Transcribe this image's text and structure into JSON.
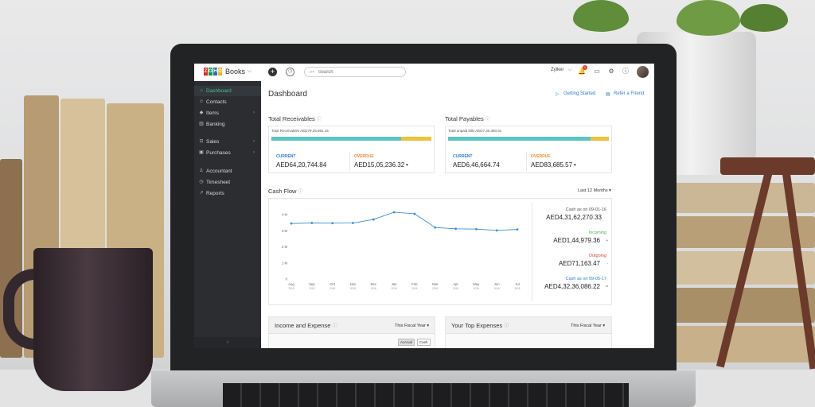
{
  "app": {
    "logo_letters": [
      "Z",
      "O",
      "H",
      "O"
    ],
    "logo_colors": [
      "#e42527",
      "#089949",
      "#226db4",
      "#f9b21d"
    ],
    "name": "Books",
    "org": "Zylker",
    "notification_count": "1"
  },
  "search": {
    "placeholder": "Search"
  },
  "sidebar": {
    "items": [
      {
        "label": "Dashboard",
        "icon": "home-icon",
        "active": true
      },
      {
        "label": "Contacts",
        "icon": "user-icon"
      },
      {
        "label": "Items",
        "icon": "tag-icon",
        "arrow": true
      },
      {
        "label": "Banking",
        "icon": "bank-icon"
      },
      {
        "label": "Sales",
        "icon": "cart-icon",
        "arrow": true
      },
      {
        "label": "Purchases",
        "icon": "bag-icon",
        "arrow": true
      },
      {
        "label": "Accountant",
        "icon": "person-icon"
      },
      {
        "label": "Timesheet",
        "icon": "clock-icon"
      },
      {
        "label": "Reports",
        "icon": "chart-icon"
      }
    ],
    "collapse_glyph": "‹"
  },
  "main": {
    "title": "Dashboard",
    "getting_started": "Getting Started",
    "refer_friend": "Refer a Friend",
    "receivables": {
      "title": "Total Receivables",
      "unpaid_label": "Total Receivables AED79,25,981.16",
      "current_label": "CURRENT",
      "current_value": "AED64,20,744.84",
      "overdue_label": "OVERDUE",
      "overdue_value": "AED15,05,236.32",
      "current_fraction": 0.81
    },
    "payables": {
      "title": "Total Payables",
      "unpaid_label": "Total unpaid bills AED7,30,350.31",
      "current_label": "CURRENT",
      "current_value": "AED6,46,664.74",
      "overdue_label": "OVERDUE",
      "overdue_value": "AED83,685.57",
      "current_fraction": 0.885
    },
    "cash_flow": {
      "title": "Cash Flow",
      "period": "Last 12 Months",
      "cash_start_label": "Cash as on 09-01-16",
      "cash_start_value": "AED4,31,62,270.33",
      "incoming_label": "Incoming",
      "incoming_value": "AED1,44,979.36",
      "outgoing_label": "Outgoing",
      "outgoing_value": "AED71,163.47",
      "cash_end_label": "Cash as on 09-05-17",
      "cash_end_value": "AED4,32,36,086.22"
    },
    "income_expense": {
      "title": "Income and Expense",
      "period": "This Fiscal Year",
      "accrual": "Accrual",
      "cash": "Cash"
    },
    "top_expenses": {
      "title": "Your Top Expenses",
      "period": "This Fiscal Year"
    }
  },
  "colors": {
    "current": "#5bc5c6",
    "overdue": "#f0c23a",
    "accent_green": "#3ec28f",
    "link_blue": "#2d7bd5",
    "overdue_orange": "#f0892c",
    "incoming_green": "#4caf50",
    "outgoing_red": "#e53935",
    "line": "#3a8fd9"
  },
  "chart_data": {
    "type": "line",
    "title": "Cash Flow",
    "categories": [
      "Aug 2016",
      "Sep 2016",
      "Oct 2016",
      "Nov 2016",
      "Dec 2016",
      "Jan 2016",
      "Feb 2016",
      "Mar 2016",
      "Apr 2016",
      "May 2016",
      "Jun 2016",
      "Jul 2016"
    ],
    "x_labels": [
      "Aug",
      "Sep",
      "Oct",
      "Nov",
      "Dec",
      "Jan",
      "Feb",
      "Mar",
      "Apr",
      "May",
      "Jun",
      "Jul"
    ],
    "x_years": [
      "2016",
      "2016",
      "2016",
      "2016",
      "2016",
      "2016",
      "2016",
      "2016",
      "2016",
      "2016",
      "2016",
      "2016"
    ],
    "y_ticks": [
      "0",
      "1 M",
      "2 M",
      "3 M",
      "4 M"
    ],
    "ylim": [
      0,
      4000000
    ],
    "series": [
      {
        "values": [
          3450000,
          3480000,
          3470000,
          3480000,
          3700000,
          4150000,
          4050000,
          3200000,
          3120000,
          3100000,
          3020000,
          3080000
        ]
      }
    ],
    "grid": false
  }
}
